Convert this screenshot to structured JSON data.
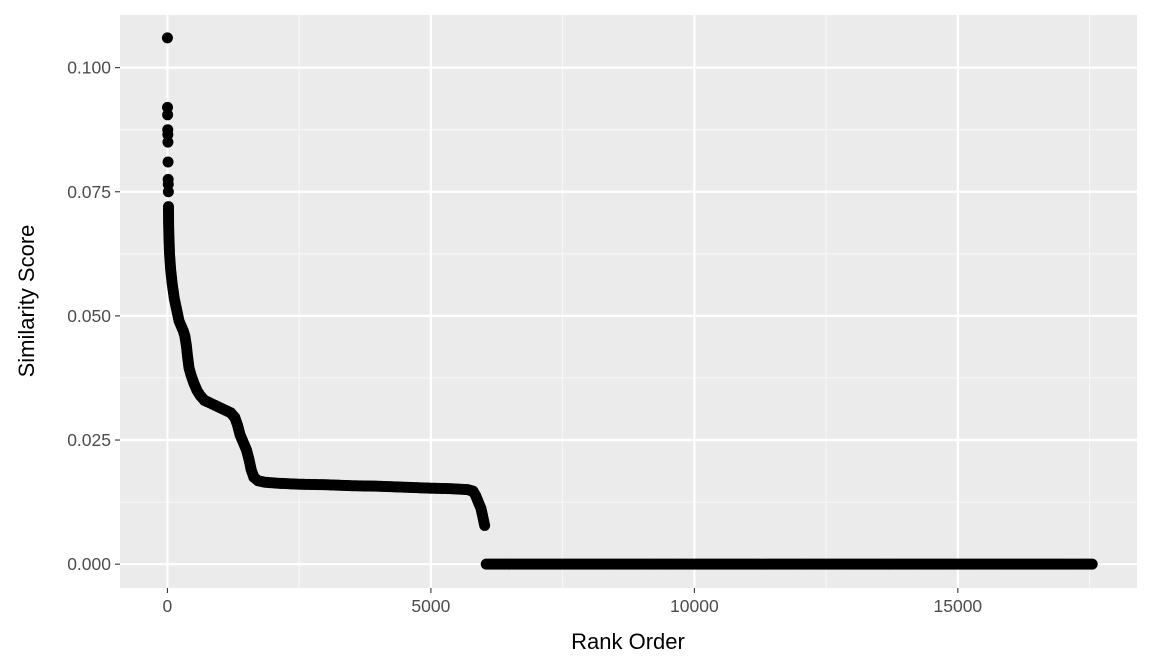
{
  "chart_data": {
    "type": "scatter",
    "title": "",
    "xlabel": "Rank Order",
    "ylabel": "Similarity Score",
    "xlim": [
      -900,
      18400
    ],
    "ylim": [
      -0.0048,
      0.1106
    ],
    "x_ticks": [
      0,
      5000,
      10000,
      15000
    ],
    "x_tick_labels": [
      "0",
      "5000",
      "10000",
      "15000"
    ],
    "y_ticks": [
      0.0,
      0.025,
      0.05,
      0.075,
      0.1
    ],
    "y_tick_labels": [
      "0.000",
      "0.025",
      "0.050",
      "0.075",
      "0.100"
    ],
    "grid": true,
    "legend": "none",
    "point_color": "#000000",
    "panel_color": "#ebebeb",
    "series": [
      {
        "points": [
          [
            0,
            0.106
          ],
          [
            2,
            0.092
          ],
          [
            4,
            0.0905
          ],
          [
            6,
            0.0875
          ],
          [
            8,
            0.0865
          ],
          [
            10,
            0.085
          ],
          [
            12,
            0.081
          ],
          [
            14,
            0.0775
          ],
          [
            16,
            0.0765
          ],
          [
            18,
            0.075
          ],
          [
            20,
            0.072
          ],
          [
            23,
            0.0685
          ],
          [
            26,
            0.067
          ],
          [
            30,
            0.0655
          ],
          [
            35,
            0.064
          ],
          [
            40,
            0.0625
          ],
          [
            50,
            0.061
          ],
          [
            60,
            0.0595
          ],
          [
            75,
            0.058
          ],
          [
            90,
            0.0565
          ],
          [
            110,
            0.055
          ],
          [
            130,
            0.0535
          ],
          [
            160,
            0.052
          ],
          [
            190,
            0.0505
          ],
          [
            220,
            0.049
          ],
          [
            260,
            0.048
          ],
          [
            300,
            0.047
          ],
          [
            330,
            0.046
          ],
          [
            360,
            0.044
          ],
          [
            380,
            0.042
          ],
          [
            410,
            0.0395
          ],
          [
            450,
            0.038
          ],
          [
            500,
            0.0365
          ],
          [
            560,
            0.035
          ],
          [
            620,
            0.034
          ],
          [
            700,
            0.033
          ],
          [
            800,
            0.0325
          ],
          [
            900,
            0.032
          ],
          [
            1000,
            0.0315
          ],
          [
            1100,
            0.031
          ],
          [
            1200,
            0.0305
          ],
          [
            1280,
            0.0295
          ],
          [
            1330,
            0.028
          ],
          [
            1380,
            0.026
          ],
          [
            1440,
            0.0245
          ],
          [
            1500,
            0.023
          ],
          [
            1550,
            0.021
          ],
          [
            1590,
            0.019
          ],
          [
            1640,
            0.0175
          ],
          [
            1720,
            0.0168
          ],
          [
            1850,
            0.0165
          ],
          [
            2100,
            0.0163
          ],
          [
            2500,
            0.0161
          ],
          [
            3000,
            0.016
          ],
          [
            3500,
            0.0158
          ],
          [
            4000,
            0.0157
          ],
          [
            4500,
            0.0155
          ],
          [
            5000,
            0.0153
          ],
          [
            5400,
            0.0152
          ],
          [
            5700,
            0.015
          ],
          [
            5800,
            0.0147
          ],
          [
            5850,
            0.0138
          ],
          [
            5900,
            0.0125
          ],
          [
            5950,
            0.0112
          ],
          [
            5980,
            0.0098
          ],
          [
            6000,
            0.0088
          ],
          [
            6020,
            0.0078
          ],
          [
            6050,
            0.0
          ],
          [
            7000,
            0.0
          ],
          [
            8000,
            0.0
          ],
          [
            9000,
            0.0
          ],
          [
            10000,
            0.0
          ],
          [
            11000,
            0.0
          ],
          [
            12000,
            0.0
          ],
          [
            13000,
            0.0
          ],
          [
            14000,
            0.0
          ],
          [
            15000,
            0.0
          ],
          [
            16000,
            0.0
          ],
          [
            17000,
            0.0
          ],
          [
            17550,
            0.0
          ]
        ]
      }
    ]
  }
}
